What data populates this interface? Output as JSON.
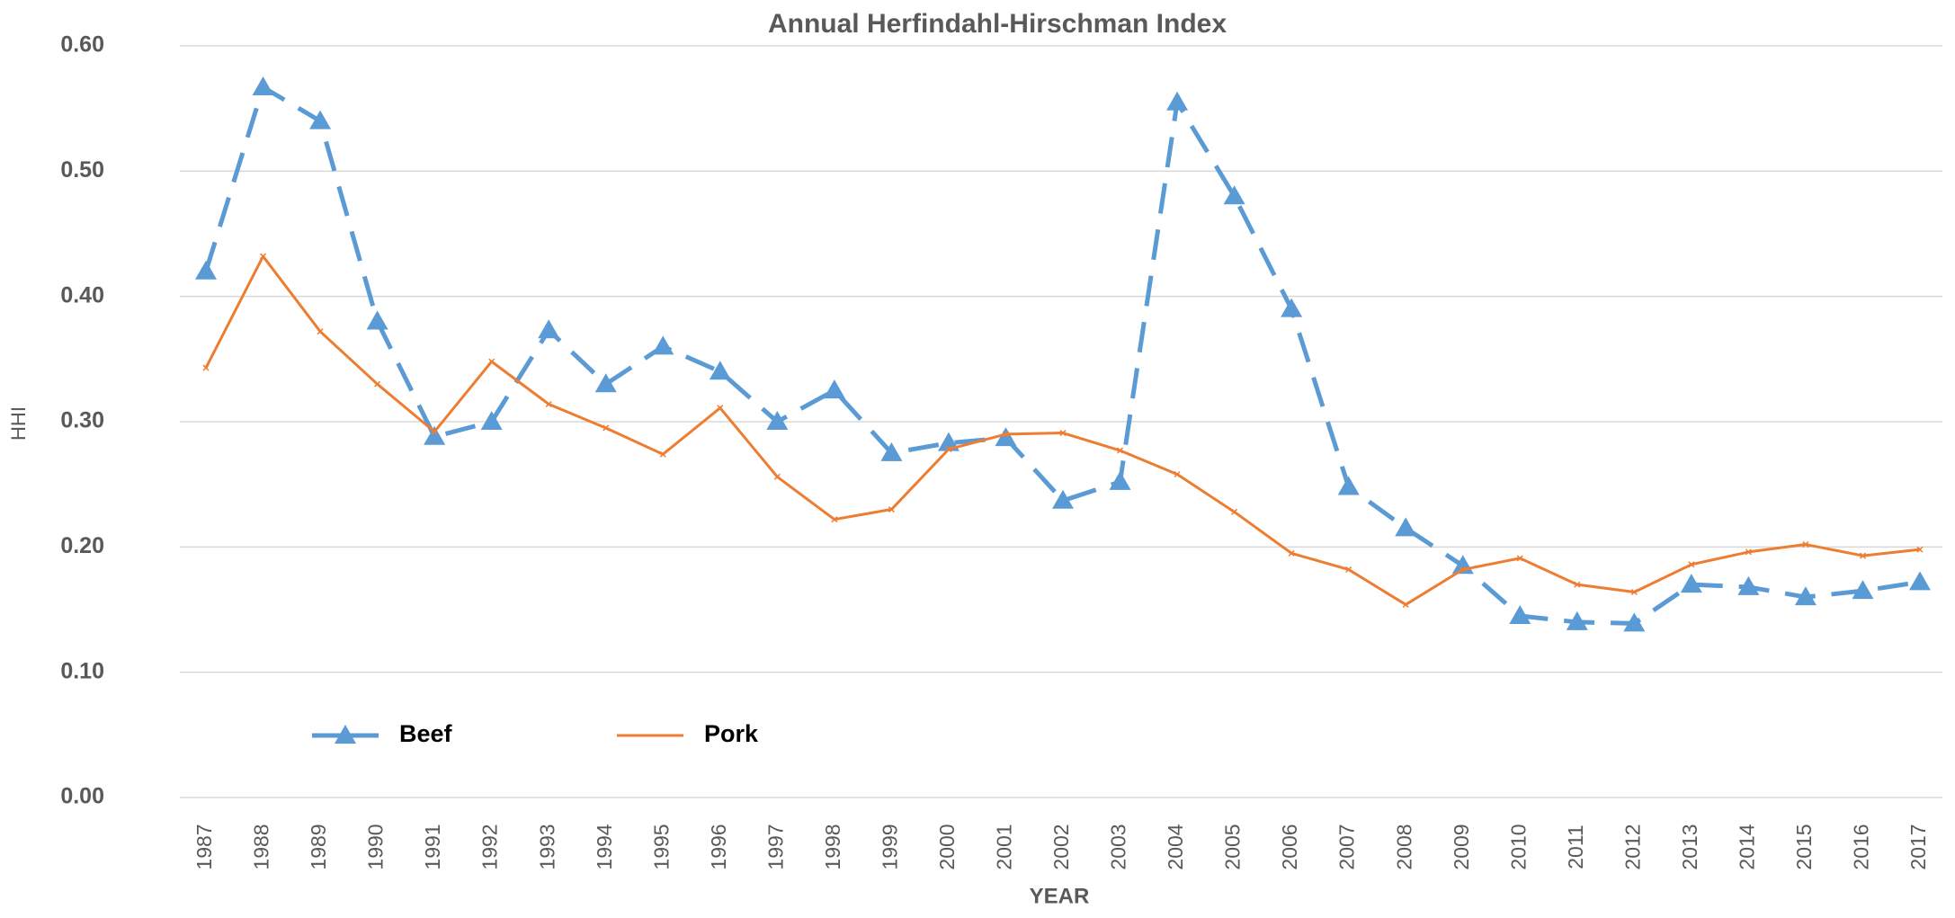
{
  "chart_data": {
    "type": "line",
    "title": "Annual Herfindahl-Hirschman Index",
    "x_label": "YEAR",
    "y_label": "HHI",
    "categories": [
      "1987",
      "1988",
      "1989",
      "1990",
      "1991",
      "1992",
      "1993",
      "1994",
      "1995",
      "1996",
      "1997",
      "1998",
      "1999",
      "2000",
      "2001",
      "2002",
      "2003",
      "2004",
      "2005",
      "2006",
      "2007",
      "2008",
      "2009",
      "2010",
      "2011",
      "2012",
      "2013",
      "2014",
      "2015",
      "2016",
      "2017"
    ],
    "series": [
      {
        "name": "Beef",
        "color": "#5b9bd5",
        "marker": "triangle",
        "dashed": true,
        "values": [
          0.42,
          0.567,
          0.54,
          0.38,
          0.288,
          0.3,
          0.373,
          0.33,
          0.36,
          0.34,
          0.3,
          0.325,
          0.275,
          0.283,
          0.287,
          0.237,
          0.252,
          0.555,
          0.48,
          0.39,
          0.248,
          0.215,
          0.185,
          0.145,
          0.14,
          0.139,
          0.17,
          0.168,
          0.16,
          0.165,
          0.172
        ]
      },
      {
        "name": "Pork",
        "color": "#ed7d31",
        "marker": "x",
        "dashed": false,
        "values": [
          0.343,
          0.432,
          0.372,
          0.33,
          0.292,
          0.348,
          0.314,
          0.295,
          0.274,
          0.311,
          0.256,
          0.222,
          0.23,
          0.278,
          0.29,
          0.291,
          0.277,
          0.258,
          0.228,
          0.195,
          0.182,
          0.154,
          0.182,
          0.191,
          0.17,
          0.164,
          0.186,
          0.196,
          0.202,
          0.193,
          0.198
        ]
      }
    ],
    "ylim": [
      0,
      0.6
    ],
    "yticks": [
      {
        "value": 0,
        "label": "0.00"
      },
      {
        "value": 0.1,
        "label": "0.10"
      },
      {
        "value": 0.2,
        "label": "0.20"
      },
      {
        "value": 0.3,
        "label": "0.30"
      },
      {
        "value": 0.4,
        "label": "0.40"
      },
      {
        "value": 0.5,
        "label": "0.50"
      },
      {
        "value": 0.6,
        "label": "0.60"
      }
    ],
    "grid": true,
    "legend": "lower left"
  }
}
